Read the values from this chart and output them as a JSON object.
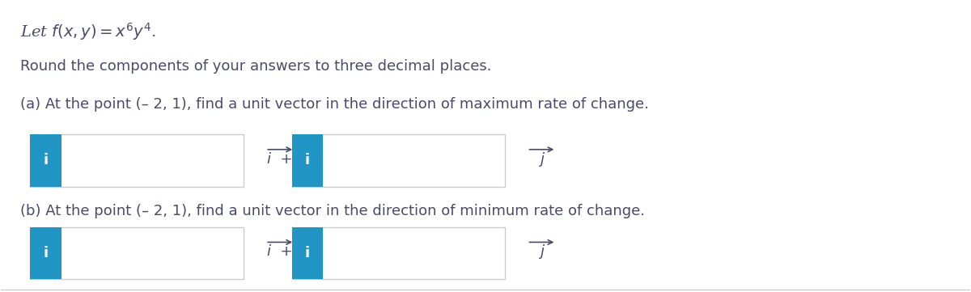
{
  "bg_color": "#ffffff",
  "title_text": "Let $f(x, y) = x^6y^4$.",
  "subtitle_text": "Round the components of your answers to three decimal places.",
  "part_a_text": "(a) At the point (– 2, 1), find a unit vector in the direction of maximum rate of change.",
  "part_b_text": "(b) At the point (– 2, 1), find a unit vector in the direction of minimum rate of change.",
  "box_blue": "#2196C4",
  "box_border": "#cccccc",
  "text_color": "#4a4a6a",
  "font_size_title": 14,
  "font_size_body": 13,
  "bx1": 0.03,
  "bx2": 0.3,
  "by_a": 0.36,
  "by_b": 0.04,
  "bw": 0.22,
  "bh": 0.18,
  "bblue": 0.032
}
